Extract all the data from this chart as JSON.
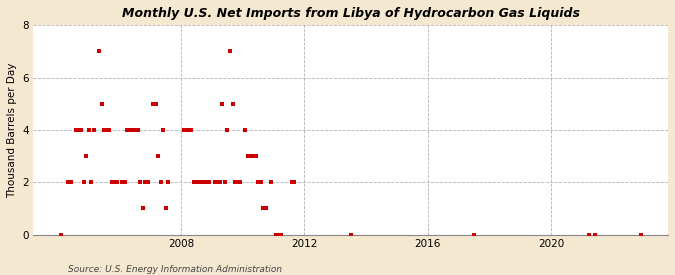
{
  "title": "Monthly U.S. Net Imports from Libya of Hydrocarbon Gas Liquids",
  "ylabel": "Thousand Barrels per Day",
  "source": "Source: U.S. Energy Information Administration",
  "background_color": "#f5e8d0",
  "plot_bg_color": "#ffffff",
  "marker_color": "#cc0000",
  "marker_size": 10,
  "marker_style": "s",
  "ylim": [
    0,
    8
  ],
  "yticks": [
    0,
    2,
    4,
    6,
    8
  ],
  "xticks": [
    2008,
    2012,
    2016,
    2020
  ],
  "xlim": [
    2003.2,
    2023.8
  ],
  "data_points": [
    [
      2004.083,
      0
    ],
    [
      2004.333,
      2
    ],
    [
      2004.417,
      2
    ],
    [
      2004.583,
      4
    ],
    [
      2004.667,
      4
    ],
    [
      2004.75,
      4
    ],
    [
      2004.833,
      2
    ],
    [
      2004.917,
      3
    ],
    [
      2005.0,
      4
    ],
    [
      2005.083,
      2
    ],
    [
      2005.167,
      4
    ],
    [
      2005.333,
      7
    ],
    [
      2005.417,
      5
    ],
    [
      2005.5,
      4
    ],
    [
      2005.583,
      4
    ],
    [
      2005.667,
      4
    ],
    [
      2005.75,
      2
    ],
    [
      2005.833,
      2
    ],
    [
      2005.917,
      2
    ],
    [
      2006.083,
      2
    ],
    [
      2006.167,
      2
    ],
    [
      2006.25,
      4
    ],
    [
      2006.333,
      4
    ],
    [
      2006.417,
      4
    ],
    [
      2006.5,
      4
    ],
    [
      2006.583,
      4
    ],
    [
      2006.667,
      2
    ],
    [
      2006.75,
      1
    ],
    [
      2006.833,
      2
    ],
    [
      2006.917,
      2
    ],
    [
      2007.083,
      5
    ],
    [
      2007.167,
      5
    ],
    [
      2007.25,
      3
    ],
    [
      2007.333,
      2
    ],
    [
      2007.417,
      4
    ],
    [
      2007.5,
      1
    ],
    [
      2007.583,
      2
    ],
    [
      2008.083,
      4
    ],
    [
      2008.167,
      4
    ],
    [
      2008.25,
      4
    ],
    [
      2008.333,
      4
    ],
    [
      2008.417,
      2
    ],
    [
      2008.5,
      2
    ],
    [
      2008.583,
      2
    ],
    [
      2008.667,
      2
    ],
    [
      2008.75,
      2
    ],
    [
      2008.833,
      2
    ],
    [
      2008.917,
      2
    ],
    [
      2009.083,
      2
    ],
    [
      2009.167,
      2
    ],
    [
      2009.25,
      2
    ],
    [
      2009.333,
      5
    ],
    [
      2009.417,
      2
    ],
    [
      2009.5,
      4
    ],
    [
      2009.583,
      7
    ],
    [
      2009.667,
      5
    ],
    [
      2009.75,
      2
    ],
    [
      2009.833,
      2
    ],
    [
      2009.917,
      2
    ],
    [
      2010.083,
      4
    ],
    [
      2010.167,
      3
    ],
    [
      2010.25,
      3
    ],
    [
      2010.333,
      3
    ],
    [
      2010.417,
      3
    ],
    [
      2010.5,
      2
    ],
    [
      2010.583,
      2
    ],
    [
      2010.667,
      1
    ],
    [
      2010.75,
      1
    ],
    [
      2010.917,
      2
    ],
    [
      2011.083,
      0
    ],
    [
      2011.167,
      0
    ],
    [
      2011.25,
      0
    ],
    [
      2011.583,
      2
    ],
    [
      2011.667,
      2
    ],
    [
      2013.5,
      0
    ],
    [
      2017.5,
      0
    ],
    [
      2021.25,
      0
    ],
    [
      2021.417,
      0
    ],
    [
      2022.917,
      0
    ]
  ]
}
